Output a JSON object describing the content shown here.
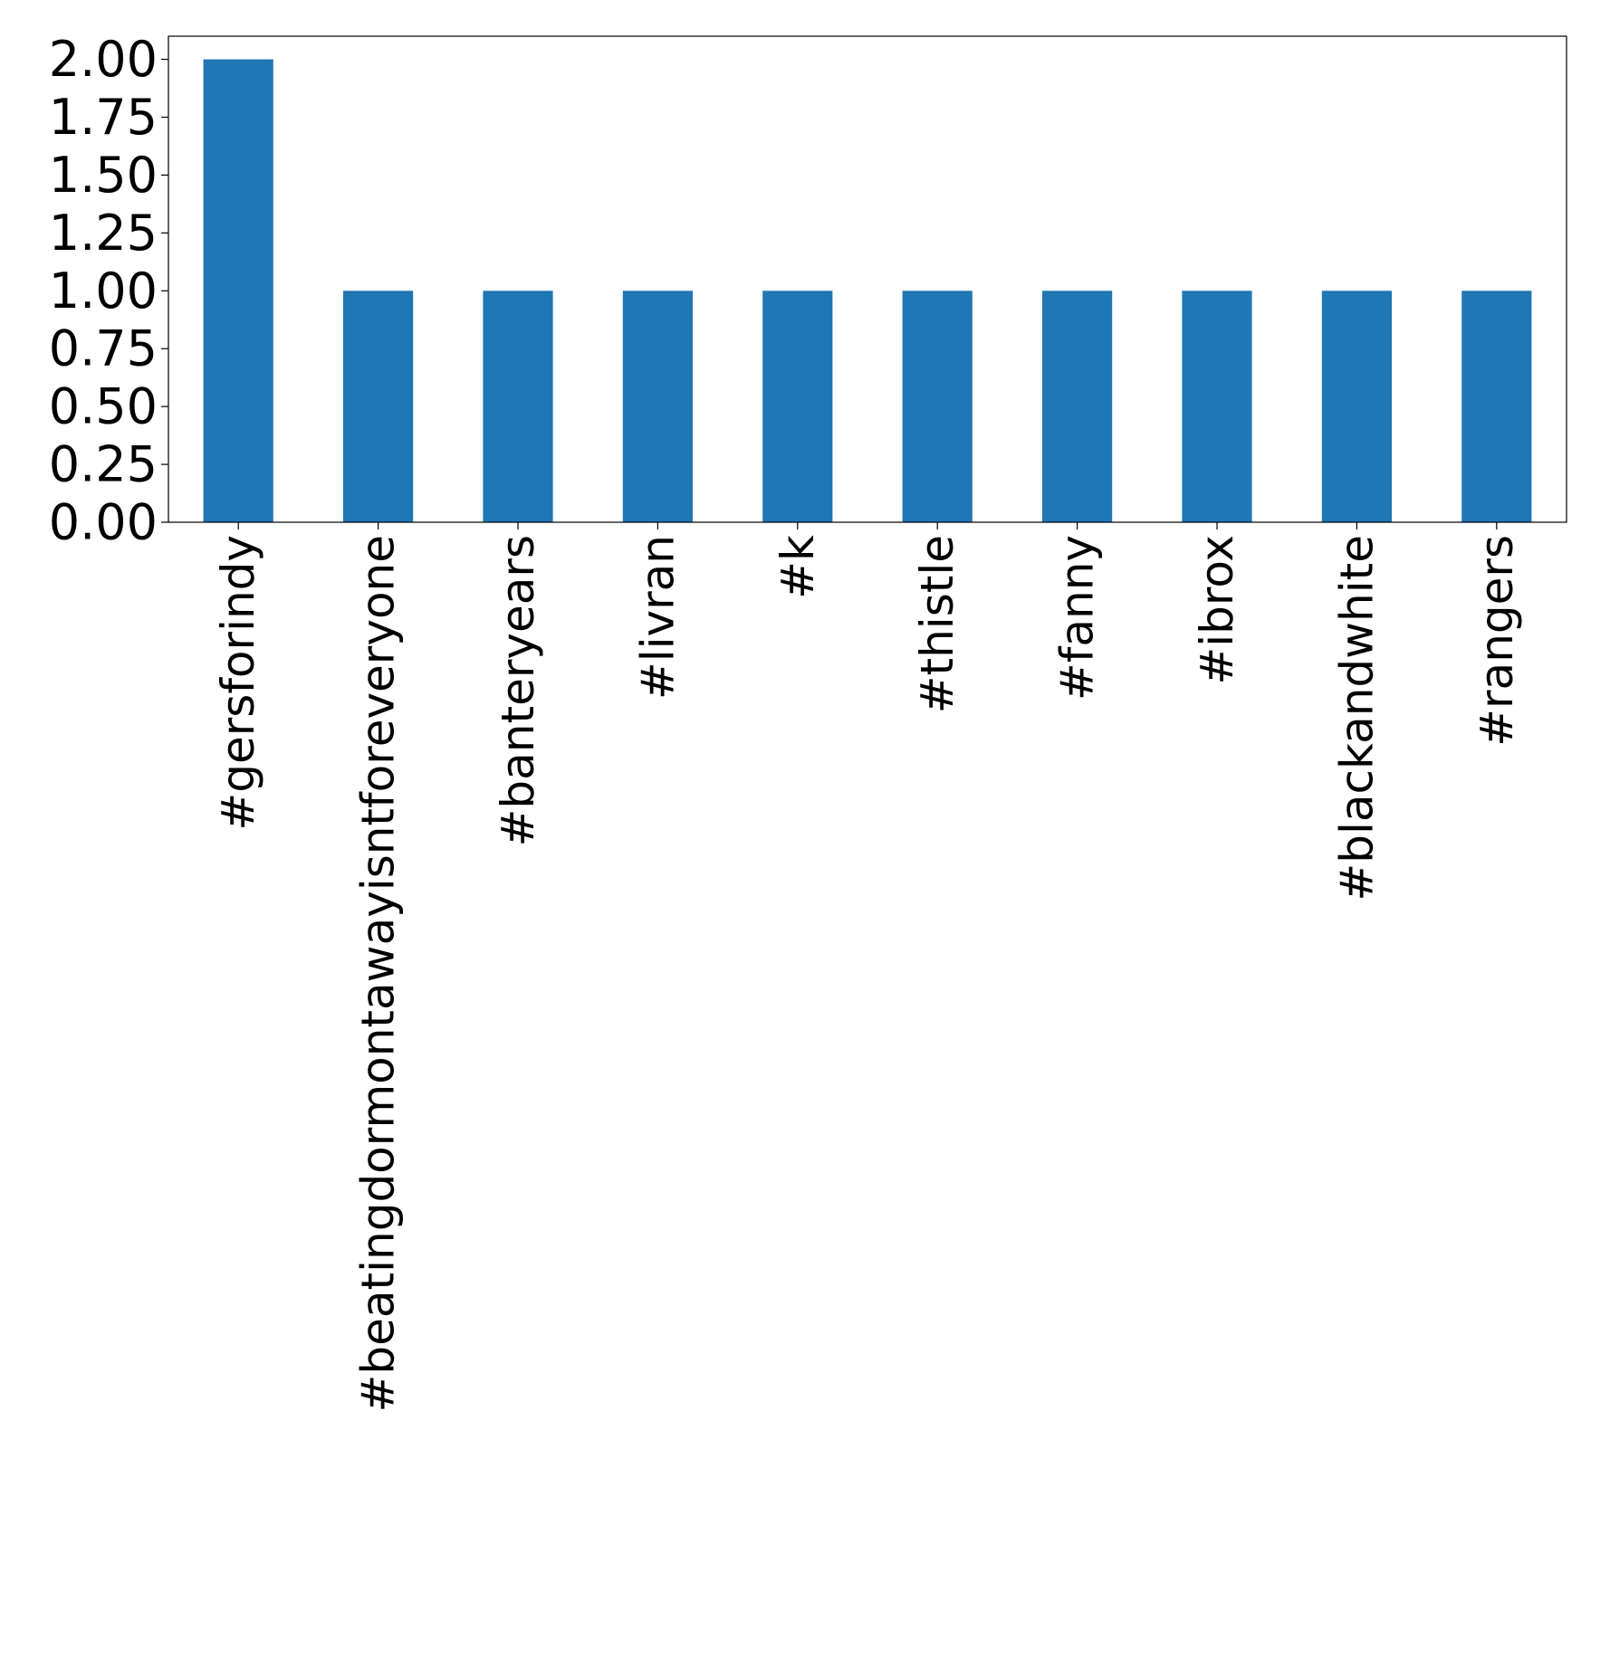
{
  "chart_data": {
    "type": "bar",
    "title": "",
    "xlabel": "",
    "ylabel": "",
    "categories": [
      "#gersforindy",
      "#beatingdormontawayisntforeveryone",
      "#banteryears",
      "#livran",
      "#k",
      "#thistle",
      "#fanny",
      "#ibrox",
      "#blackandwhite",
      "#rangers"
    ],
    "values": [
      2,
      1,
      1,
      1,
      1,
      1,
      1,
      1,
      1,
      1
    ],
    "ylim": [
      0,
      2.1
    ],
    "yticks": [
      "0.00",
      "0.25",
      "0.50",
      "0.75",
      "1.00",
      "1.25",
      "1.50",
      "1.75",
      "2.00"
    ],
    "ytick_values": [
      0,
      0.25,
      0.5,
      0.75,
      1.0,
      1.25,
      1.5,
      1.75,
      2.0
    ],
    "grid": false,
    "legend": "none",
    "bar_color": "#1f77b4",
    "axis_color": "#000000"
  }
}
